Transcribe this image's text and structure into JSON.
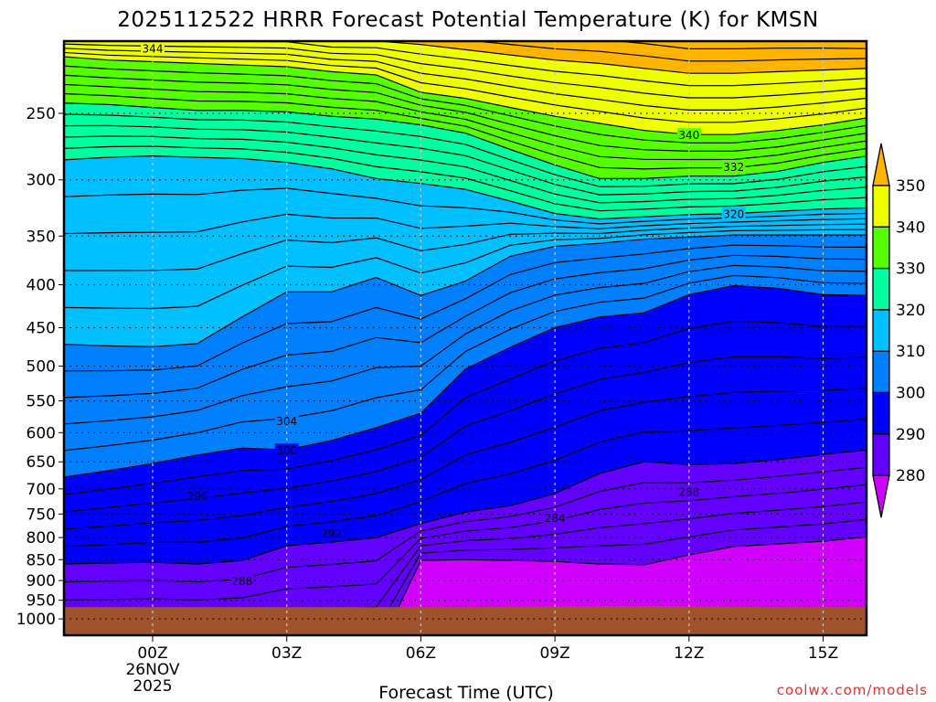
{
  "chart_data": {
    "type": "contour",
    "title": "2025112522 HRRR Forecast Potential Temperature (K) for KMSN",
    "xlabel": "Forecast Time (UTC)",
    "ylabel": "",
    "credit": "coolwx.com/models",
    "x_range_hours": [
      -2,
      16
    ],
    "y_range_hpa": [
      205,
      1046
    ],
    "y_scale": "log",
    "y_ticks": [
      250,
      300,
      350,
      400,
      450,
      500,
      550,
      600,
      650,
      700,
      750,
      800,
      850,
      900,
      950,
      1000
    ],
    "x_ticks": [
      {
        "hour": 0,
        "label": "00Z",
        "sub1": "26NOV",
        "sub2": "2025"
      },
      {
        "hour": 3,
        "label": "03Z"
      },
      {
        "hour": 6,
        "label": "06Z"
      },
      {
        "hour": 9,
        "label": "09Z"
      },
      {
        "hour": 12,
        "label": "12Z"
      },
      {
        "hour": 15,
        "label": "15Z"
      }
    ],
    "grid": true,
    "hours": [
      -2,
      -1,
      0,
      1,
      2,
      3,
      4,
      5,
      6,
      7,
      8,
      9,
      10,
      11,
      12,
      13,
      14,
      15,
      16
    ],
    "isentrope_pressure_hpa": {
      "280": [
        1100,
        1100,
        1100,
        1100,
        1100,
        1100,
        1100,
        1100,
        852,
        850,
        852,
        854,
        860,
        862,
        839,
        820,
        814,
        808,
        798
      ],
      "290": [
        860,
        858,
        856,
        860,
        852,
        818,
        810,
        800,
        770,
        746,
        733,
        709,
        671,
        650,
        655,
        653,
        646,
        637,
        629
      ],
      "300": [
        678,
        666,
        653,
        638,
        626,
        629,
        613,
        592,
        569,
        504,
        475,
        450,
        437,
        432,
        411,
        401,
        404,
        411,
        412
      ],
      "310": [
        471,
        473,
        474,
        470,
        437,
        408,
        408,
        392,
        412,
        396,
        370,
        360,
        357,
        353,
        351,
        349,
        349,
        349,
        349
      ],
      "320": [
        284,
        282,
        281,
        282,
        283,
        286,
        291,
        299,
        303,
        308,
        318,
        329,
        334,
        332,
        330,
        329,
        327,
        325,
        324
      ],
      "330": [
        243,
        244,
        246,
        248,
        248,
        249,
        252,
        254,
        258,
        264,
        276,
        288,
        299,
        299,
        297,
        297,
        293,
        286,
        281
      ],
      "340": [
        214,
        216,
        217,
        218,
        219,
        220,
        223,
        225,
        236,
        240,
        246,
        252,
        257,
        262,
        265,
        265,
        262,
        258,
        253
      ],
      "350": [
        202,
        202,
        202,
        202,
        202,
        202,
        205,
        205,
        207,
        210,
        213,
        216,
        218,
        221,
        224,
        224,
        223,
        222,
        221
      ]
    },
    "contour_interval_k": 2,
    "surface_pressure_hpa": [
      968,
      968,
      968,
      968,
      968,
      968,
      968,
      968,
      968,
      968,
      967,
      966,
      965,
      965,
      966,
      967,
      968,
      968,
      968
    ],
    "contour_labels": [
      {
        "text": "344",
        "hour": 0,
        "p": 209
      },
      {
        "text": "340",
        "hour": 12,
        "p": 265
      },
      {
        "text": "332",
        "hour": 13,
        "p": 289
      },
      {
        "text": "320",
        "hour": 13,
        "p": 329
      },
      {
        "text": "304",
        "hour": 3,
        "p": 580
      },
      {
        "text": "300",
        "hour": 3,
        "p": 629
      },
      {
        "text": "296",
        "hour": 1,
        "p": 713
      },
      {
        "text": "292",
        "hour": 4,
        "p": 790
      },
      {
        "text": "288",
        "hour": 2,
        "p": 900
      },
      {
        "text": "288",
        "hour": 12,
        "p": 705
      },
      {
        "text": "284",
        "hour": 9,
        "p": 757
      }
    ],
    "colorbar": {
      "levels": [
        "350",
        "340",
        "330",
        "320",
        "310",
        "300",
        "290",
        "280"
      ],
      "colors": {
        "above_350": "#ffb400",
        "340_350": "#f0ff00",
        "330_340": "#55ff00",
        "320_330": "#00ffa0",
        "310_320": "#00c0ff",
        "300_310": "#0080ff",
        "290_300": "#0000ff",
        "280_290": "#6400ff",
        "below_280": "#d200ff"
      },
      "ground": "#a0522d"
    }
  }
}
